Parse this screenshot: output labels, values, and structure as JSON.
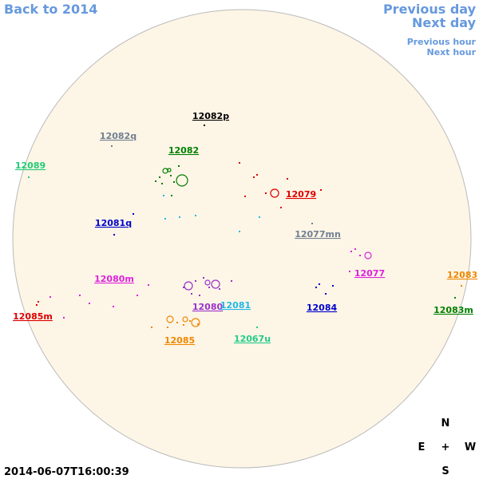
{
  "navigation": {
    "back": "Back to 2014",
    "previous_day": "Previous day",
    "next_day": "Next day",
    "previous_hour": "Previous hour",
    "next_hour": "Next hour"
  },
  "regions": [
    {
      "label": "12082p",
      "color": "#000000"
    },
    {
      "label": "12082q",
      "color": "#708090"
    },
    {
      "label": "12082",
      "color": "#008000"
    },
    {
      "label": "12089",
      "color": "#22cc77"
    },
    {
      "label": "12079",
      "color": "#dd0000"
    },
    {
      "label": "12081q",
      "color": "#0000cc"
    },
    {
      "label": "12077mn",
      "color": "#708090"
    },
    {
      "label": "12080m",
      "color": "#dd22dd"
    },
    {
      "label": "12077",
      "color": "#dd22dd"
    },
    {
      "label": "12083",
      "color": "#ee8800"
    },
    {
      "label": "12083m",
      "color": "#008000"
    },
    {
      "label": "12085m",
      "color": "#dd0000"
    },
    {
      "label": "12080",
      "color": "#9932cc"
    },
    {
      "label": "12081",
      "color": "#22b8e8"
    },
    {
      "label": "12084",
      "color": "#0000cc"
    },
    {
      "label": "12085",
      "color": "#ee8800"
    },
    {
      "label": "12067u",
      "color": "#22cc88"
    }
  ],
  "compass": {
    "north": "N",
    "east": "E",
    "center": "+",
    "west": "W",
    "south": "S"
  },
  "timestamp": "2014-06-07T16:00:39"
}
